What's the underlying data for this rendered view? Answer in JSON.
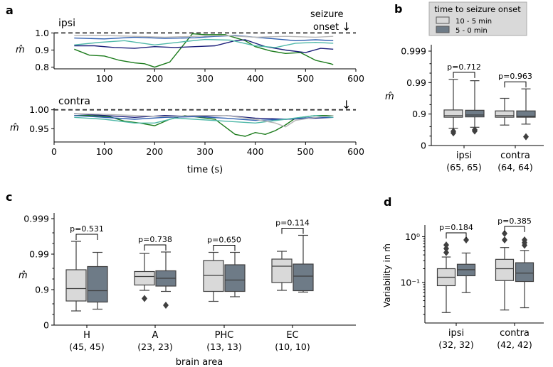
{
  "chart_data": [
    {
      "panel": "a",
      "type": "line",
      "subtitle": "ipsi",
      "annotation": "seizure\nonset",
      "arrow": "↓",
      "ylabel": "m̂",
      "yticks": [
        "1.0",
        "0.9",
        "0.8"
      ],
      "ytick_values": [
        1.0,
        0.9,
        0.8
      ],
      "xticks": [
        "100",
        "200",
        "300",
        "400",
        "500",
        "600"
      ],
      "xlim": [
        0,
        600
      ],
      "ylim": [
        0.79,
        1.01
      ],
      "reference_line": 1.0,
      "series": [
        {
          "name": "green",
          "color": "#1a7a1a",
          "x": [
            40,
            70,
            100,
            130,
            160,
            180,
            200,
            230,
            260,
            275,
            300,
            340,
            380,
            400,
            430,
            460,
            490,
            520,
            550,
            555
          ],
          "y": [
            0.905,
            0.87,
            0.865,
            0.84,
            0.825,
            0.82,
            0.8,
            0.83,
            0.94,
            0.995,
            0.99,
            0.99,
            0.955,
            0.92,
            0.895,
            0.88,
            0.885,
            0.84,
            0.82,
            0.815
          ]
        },
        {
          "name": "navy",
          "color": "#1c1f7a",
          "x": [
            40,
            80,
            120,
            160,
            200,
            240,
            280,
            320,
            360,
            380,
            400,
            420,
            460,
            500,
            530,
            555
          ],
          "y": [
            0.925,
            0.925,
            0.915,
            0.91,
            0.92,
            0.915,
            0.92,
            0.925,
            0.955,
            0.96,
            0.94,
            0.92,
            0.9,
            0.885,
            0.91,
            0.905
          ]
        },
        {
          "name": "blue",
          "color": "#2f5fb0",
          "x": [
            40,
            100,
            160,
            220,
            280,
            320,
            360,
            400,
            440,
            480,
            520,
            555
          ],
          "y": [
            0.97,
            0.965,
            0.975,
            0.968,
            0.972,
            0.98,
            0.985,
            0.975,
            0.965,
            0.955,
            0.96,
            0.955
          ]
        },
        {
          "name": "teal",
          "color": "#4fb8a8",
          "x": [
            40,
            90,
            140,
            200,
            260,
            300,
            350,
            400,
            440,
            480,
            520,
            555
          ],
          "y": [
            0.93,
            0.945,
            0.955,
            0.93,
            0.95,
            0.962,
            0.958,
            0.925,
            0.915,
            0.94,
            0.945,
            0.94
          ]
        },
        {
          "name": "gray",
          "color": "#b7b7b7",
          "x": [
            40,
            100,
            160,
            220,
            280,
            340,
            400,
            460,
            520,
            555
          ],
          "y": [
            0.985,
            0.985,
            0.98,
            0.975,
            0.98,
            0.985,
            0.975,
            0.98,
            0.975,
            0.98
          ]
        }
      ]
    },
    {
      "panel": "a",
      "type": "line",
      "subtitle": "contra",
      "arrow": "↓",
      "ylabel": "m̂",
      "xlabel": "time (s)",
      "yticks": [
        "1.00",
        "0.95"
      ],
      "ytick_values": [
        1.0,
        0.95
      ],
      "xticks": [
        "0",
        "100",
        "200",
        "300",
        "400",
        "500",
        "600"
      ],
      "xlim": [
        0,
        600
      ],
      "ylim": [
        0.915,
        1.005
      ],
      "reference_line": 1.0,
      "series": [
        {
          "name": "green",
          "color": "#1a7a1a",
          "x": [
            40,
            70,
            110,
            140,
            170,
            200,
            230,
            260,
            290,
            320,
            340,
            360,
            380,
            400,
            420,
            440,
            460,
            480,
            520,
            555
          ],
          "y": [
            0.985,
            0.985,
            0.982,
            0.97,
            0.965,
            0.958,
            0.975,
            0.985,
            0.98,
            0.975,
            0.955,
            0.935,
            0.93,
            0.94,
            0.935,
            0.945,
            0.96,
            0.978,
            0.985,
            0.985
          ]
        },
        {
          "name": "navy",
          "color": "#1c1f7a",
          "x": [
            40,
            100,
            160,
            220,
            280,
            340,
            400,
            460,
            520,
            555
          ],
          "y": [
            0.99,
            0.985,
            0.98,
            0.985,
            0.982,
            0.985,
            0.978,
            0.975,
            0.978,
            0.98
          ]
        },
        {
          "name": "blue",
          "color": "#2f5fb0",
          "x": [
            40,
            100,
            160,
            220,
            280,
            340,
            400,
            460,
            520,
            555
          ],
          "y": [
            0.985,
            0.98,
            0.975,
            0.98,
            0.982,
            0.978,
            0.972,
            0.975,
            0.98,
            0.98
          ]
        },
        {
          "name": "teal",
          "color": "#4fb8a8",
          "x": [
            40,
            100,
            160,
            200,
            240,
            280,
            340,
            400,
            460,
            520,
            555
          ],
          "y": [
            0.98,
            0.975,
            0.965,
            0.965,
            0.978,
            0.975,
            0.97,
            0.965,
            0.975,
            0.985,
            0.98
          ]
        },
        {
          "name": "gray",
          "color": "#b7b7b7",
          "x": [
            40,
            100,
            160,
            220,
            280,
            340,
            400,
            440,
            460,
            480,
            520,
            555
          ],
          "y": [
            0.99,
            0.988,
            0.985,
            0.982,
            0.985,
            0.985,
            0.975,
            0.965,
            0.955,
            0.972,
            0.98,
            0.985
          ]
        }
      ]
    },
    {
      "panel": "b",
      "type": "box",
      "ylabel": "m̂",
      "yticks": [
        "0.999",
        "0.99",
        "0.9",
        "0"
      ],
      "legend_title": "time to seizure onset",
      "legend": [
        {
          "label": "10 - 5 min",
          "color": "#d9d9d9"
        },
        {
          "label": "5 - 0 min",
          "color": "#6e7b87"
        }
      ],
      "groups": [
        {
          "name": "ipsi",
          "n": "(65, 65)",
          "p": "p=0.712",
          "boxes": [
            {
              "whisker_low": 0.55,
              "q1": 0.9,
              "median": 0.95,
              "q3": 1.13,
              "whisker_high": 2.1,
              "outliers": [
                0.4,
                0.45
              ]
            },
            {
              "whisker_low": 0.58,
              "q1": 0.91,
              "median": 0.97,
              "q3": 1.12,
              "whisker_high": 2.06,
              "outliers": [
                0.46,
                0.5
              ]
            }
          ]
        },
        {
          "name": "contra",
          "n": "(64, 64)",
          "p": "p=0.963",
          "boxes": [
            {
              "whisker_low": 0.65,
              "q1": 0.9,
              "median": 0.95,
              "q3": 1.1,
              "whisker_high": 1.5,
              "outliers": []
            },
            {
              "whisker_low": 0.68,
              "q1": 0.9,
              "median": 0.93,
              "q3": 1.1,
              "whisker_high": 1.8,
              "outliers": [
                0.28
              ]
            }
          ]
        }
      ]
    },
    {
      "panel": "c",
      "type": "box",
      "ylabel": "m̂",
      "xlabel": "brain area",
      "yticks": [
        "0.999",
        "0.99",
        "0.9",
        "0"
      ],
      "groups": [
        {
          "name": "H",
          "n": "(45, 45)",
          "p": "p=0.531",
          "boxes": [
            {
              "whisker_low": 0.4,
              "q1": 0.68,
              "median": 1.03,
              "q3": 1.56,
              "whisker_high": 2.36,
              "outliers": []
            },
            {
              "whisker_low": 0.45,
              "q1": 0.65,
              "median": 0.97,
              "q3": 1.65,
              "whisker_high": 2.05,
              "outliers": []
            }
          ]
        },
        {
          "name": "A",
          "n": "(23, 23)",
          "p": "p=0.738",
          "boxes": [
            {
              "whisker_low": 0.98,
              "q1": 1.13,
              "median": 1.37,
              "q3": 1.51,
              "whisker_high": 2.02,
              "outliers": [
                0.75
              ]
            },
            {
              "whisker_low": 0.95,
              "q1": 1.1,
              "median": 1.32,
              "q3": 1.53,
              "whisker_high": 2.06,
              "outliers": [
                0.56
              ]
            }
          ]
        },
        {
          "name": "PHC",
          "n": "(13, 13)",
          "p": "p=0.650",
          "boxes": [
            {
              "whisker_low": 0.67,
              "q1": 0.95,
              "median": 1.4,
              "q3": 1.82,
              "whisker_high": 2.05,
              "outliers": []
            },
            {
              "whisker_low": 0.8,
              "q1": 0.95,
              "median": 1.27,
              "q3": 1.7,
              "whisker_high": 2.05,
              "outliers": []
            }
          ]
        },
        {
          "name": "EC",
          "n": "(10, 10)",
          "p": "p=0.114",
          "boxes": [
            {
              "whisker_low": 0.98,
              "q1": 1.2,
              "median": 1.66,
              "q3": 1.86,
              "whisker_high": 2.08,
              "outliers": []
            },
            {
              "whisker_low": 0.93,
              "q1": 0.97,
              "median": 1.38,
              "q3": 1.72,
              "whisker_high": 2.53,
              "outliers": []
            }
          ]
        }
      ]
    },
    {
      "panel": "d",
      "type": "box",
      "ylabel": "Variability in m̂",
      "yscale": "log",
      "ylim": [
        0.013,
        1.8
      ],
      "yticks": [
        "10⁰",
        "10⁻¹"
      ],
      "ytick_values": [
        1,
        0.1
      ],
      "groups": [
        {
          "name": "ipsi",
          "n": "(32, 32)",
          "p": "p=0.184",
          "boxes": [
            {
              "whisker_low": 0.022,
              "q1": 0.085,
              "median": 0.13,
              "q3": 0.2,
              "whisker_high": 0.36,
              "outliers": [
                0.45,
                0.55,
                0.66
              ]
            },
            {
              "whisker_low": 0.06,
              "q1": 0.14,
              "median": 0.19,
              "q3": 0.25,
              "whisker_high": 0.44,
              "outliers": [
                0.85
              ]
            }
          ]
        },
        {
          "name": "contra",
          "n": "(42, 42)",
          "p": "p=0.385",
          "boxes": [
            {
              "whisker_low": 0.025,
              "q1": 0.11,
              "median": 0.2,
              "q3": 0.32,
              "whisker_high": 0.58,
              "outliers": [
                0.85,
                1.18
              ]
            },
            {
              "whisker_low": 0.028,
              "q1": 0.105,
              "median": 0.16,
              "q3": 0.27,
              "whisker_high": 0.5,
              "outliers": [
                0.65,
                0.74,
                0.85
              ]
            }
          ]
        }
      ]
    }
  ]
}
